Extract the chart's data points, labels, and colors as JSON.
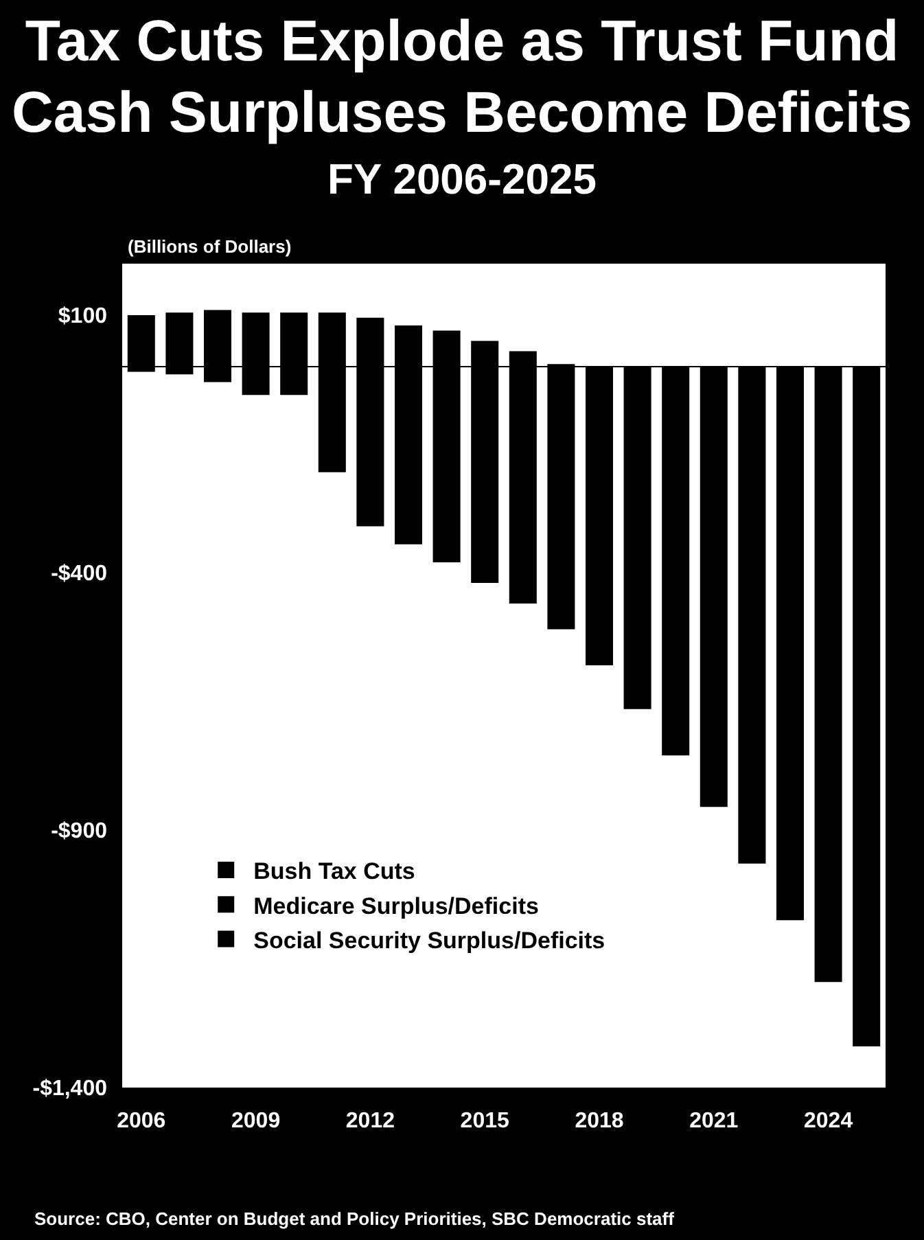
{
  "chart_data": {
    "type": "bar",
    "title": "Tax Cuts Explode as Trust Fund Cash Surpluses Become Deficits",
    "subtitle": "FY 2006-2025",
    "ylabel": "(Billions of Dollars)",
    "annotations": [
      "Source:  CBO, Center on Budget and Policy Priorities, SBC Democratic staff"
    ],
    "categories": [
      "2006",
      null,
      null,
      "2009",
      null,
      null,
      "2012",
      null,
      null,
      "2015",
      null,
      null,
      "2018",
      null,
      null,
      "2021",
      null,
      null,
      "2024",
      null
    ],
    "series": [
      {
        "name": "Bush Tax Cuts",
        "color": "#000000",
        "values": [
          -10,
          -15,
          -30,
          -55,
          -55,
          -205,
          -310,
          -345,
          -380,
          -420,
          -460,
          -510,
          -580,
          -665,
          -755,
          -855,
          -965,
          -1075,
          -1195,
          -1320
        ]
      },
      {
        "name": "Medicare Surplus/Deficits",
        "color": "#000000",
        "values": [
          null,
          null,
          null,
          null,
          null,
          null,
          null,
          null,
          null,
          null,
          null,
          null,
          null,
          null,
          null,
          null,
          null,
          null,
          null,
          null
        ]
      },
      {
        "name": "Social Security Surplus/Deficits",
        "color": "#000000",
        "values": [
          100,
          105,
          110,
          105,
          105,
          105,
          95,
          80,
          70,
          50,
          30,
          5,
          null,
          null,
          null,
          null,
          null,
          null,
          null,
          null
        ]
      }
    ],
    "stacked": true,
    "ylim": [
      -1400,
      200
    ],
    "yticks": [
      {
        "value": 100,
        "label": "$100"
      },
      {
        "value": -400,
        "label": "-$400"
      },
      {
        "value": -900,
        "label": "-$900"
      },
      {
        "value": -1400,
        "label": "-$1,400"
      }
    ],
    "grid": false,
    "legend": "bottom left"
  }
}
